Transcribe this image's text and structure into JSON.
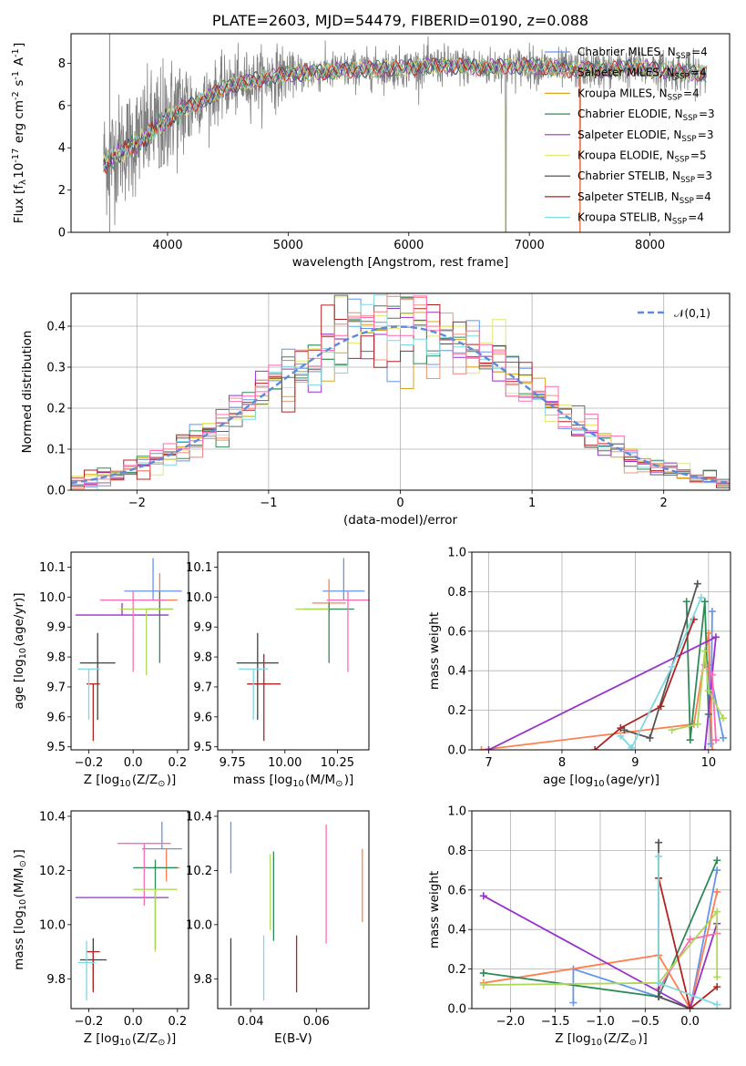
{
  "chart_data": [
    {
      "id": "spectrum",
      "type": "line",
      "title": "PLATE=2603, MJD=54479, FIBERID=0190, z=0.088",
      "xlabel": "wavelength [Angstrom, rest frame]",
      "ylabel": "Flux [f$_\\lambda$10$^{-17}$ erg cm$^{-2}$ s$^{-1}$ A$^{-1}$]",
      "xlim": [
        3200,
        8660
      ],
      "ylim": [
        0,
        9.4
      ],
      "x_ticks": [
        4000,
        5000,
        6000,
        7000,
        8000
      ],
      "y_ticks": [
        0,
        2,
        4,
        6,
        8
      ],
      "grid": false,
      "legend_position": "top-right",
      "data_x_range": [
        3470,
        8470
      ],
      "observed_color": "#808080",
      "continuum_x": [
        3470,
        3600,
        3800,
        4000,
        4200,
        4500,
        4800,
        5000,
        5300,
        5600,
        6000,
        6300,
        6600,
        7000,
        7300,
        7600,
        7900,
        8200,
        8470
      ],
      "continuum_y": [
        3.4,
        3.9,
        4.6,
        5.6,
        6.0,
        6.9,
        7.3,
        7.5,
        7.6,
        7.7,
        7.8,
        7.9,
        7.8,
        7.9,
        7.7,
        7.7,
        7.8,
        7.6,
        7.5
      ],
      "series": [
        {
          "name": "Chabrier MILES, N$_{SSP}$=4",
          "color": "#6495ED"
        },
        {
          "name": "Salpeter MILES, N$_{SSP}$=4",
          "color": "#FF7F50"
        },
        {
          "name": "Kroupa MILES, N$_{SSP}$=4",
          "color": "#DAA520"
        },
        {
          "name": "Chabrier ELODIE, N$_{SSP}$=3",
          "color": "#2E8B57"
        },
        {
          "name": "Salpeter ELODIE, N$_{SSP}$=3",
          "color": "#9932CC"
        },
        {
          "name": "Kroupa ELODIE, N$_{SSP}$=5",
          "color": "#E1E873"
        },
        {
          "name": "Chabrier STELIB, N$_{SSP}$=3",
          "color": "#404040"
        },
        {
          "name": "Salpeter STELIB, N$_{SSP}$=4",
          "color": "#B22222"
        },
        {
          "name": "Kroupa STELIB, N$_{SSP}$=4",
          "color": "#7FD8E0"
        }
      ]
    },
    {
      "id": "residuals",
      "type": "histogram",
      "xlabel": "(data-model)/error",
      "ylabel": "Normed distribution",
      "xlim": [
        -2.5,
        2.5
      ],
      "ylim": [
        0,
        0.48
      ],
      "x_ticks": [
        -2,
        -1,
        0,
        1,
        2
      ],
      "y_ticks": [
        0.0,
        0.1,
        0.2,
        0.3,
        0.4
      ],
      "grid": true,
      "bin_width": 0.1,
      "reference_curve": {
        "name": "$\\mathcal{N}(0,1)$",
        "mean": 0,
        "sigma": 1,
        "color": "#5B8BD9"
      },
      "legend_position": "top-right",
      "histogram_colors": [
        "#6495ED",
        "#E9967A",
        "#DAA520",
        "#2E8B57",
        "#9932CC",
        "#E1E873",
        "#696969",
        "#B22222",
        "#7FD8E0",
        "#F08080",
        "#FF69B4"
      ]
    },
    {
      "id": "age_vs_Z",
      "type": "errorbar",
      "xlabel": "Z [log$_{10}$(Z/Z$_\\odot$)]",
      "ylabel": "age  [log$_{10}$(age/yr)]",
      "xlim": [
        -0.28,
        0.25
      ],
      "ylim": [
        9.49,
        10.15
      ],
      "x_ticks": [
        -0.2,
        0.0,
        0.2
      ],
      "y_ticks": [
        9.5,
        9.6,
        9.7,
        9.8,
        9.9,
        10.0,
        10.1
      ],
      "grid": false,
      "points": [
        {
          "color": "#6495ED",
          "x": 0.09,
          "y": 10.02,
          "xerr": 0.13,
          "yerr_lo": 0.03,
          "yerr_hi": 0.11
        },
        {
          "color": "#FF7F50",
          "x": 0.12,
          "y": 9.99,
          "xerr": 0.08,
          "yerr_lo": 0.05,
          "yerr_hi": 0.09
        },
        {
          "color": "#2E8B57",
          "x": 0.12,
          "y": 9.96,
          "xerr": 0.06,
          "yerr_lo": 0.18,
          "yerr_hi": 0.06
        },
        {
          "color": "#9932CC",
          "x": -0.05,
          "y": 9.94,
          "xerr": 0.21,
          "yerr_lo": 0.0,
          "yerr_hi": 0.04
        },
        {
          "color": "#FF69B4",
          "x": 0.0,
          "y": 9.99,
          "xerr": 0.15,
          "yerr_lo": 0.24,
          "yerr_hi": 0.03
        },
        {
          "color": "#ADD857",
          "x": 0.06,
          "y": 9.96,
          "xerr": 0.12,
          "yerr_lo": 0.22,
          "yerr_hi": 0.0
        },
        {
          "color": "#404040",
          "x": -0.16,
          "y": 9.78,
          "xerr": 0.08,
          "yerr_lo": 0.19,
          "yerr_hi": 0.1
        },
        {
          "color": "#B22222",
          "x": -0.18,
          "y": 9.71,
          "xerr": 0.03,
          "yerr_lo": 0.19,
          "yerr_hi": 0.0
        },
        {
          "color": "#7FD8E0",
          "x": -0.2,
          "y": 9.76,
          "xerr": 0.05,
          "yerr_lo": 0.17,
          "yerr_hi": 0.0
        }
      ]
    },
    {
      "id": "age_vs_mass",
      "type": "errorbar",
      "xlabel": "mass [log$_{10}$(M/M$_\\odot$)]",
      "ylabel": "",
      "xlim": [
        9.68,
        10.4
      ],
      "ylim": [
        9.49,
        10.15
      ],
      "x_ticks": [
        9.75,
        10.0,
        10.25
      ],
      "y_ticks": [
        9.5,
        9.6,
        9.7,
        9.8,
        9.9,
        10.0,
        10.1
      ],
      "grid": false,
      "points": [
        {
          "color": "#6495ED",
          "x": 10.28,
          "y": 10.02,
          "xerr": 0.1,
          "yerr_lo": 0.03,
          "yerr_hi": 0.11
        },
        {
          "color": "#FF7F50",
          "x": 10.21,
          "y": 9.98,
          "xerr": 0.08,
          "yerr_lo": 0.03,
          "yerr_hi": 0.08
        },
        {
          "color": "#2E8B57",
          "x": 10.21,
          "y": 9.96,
          "xerr": 0.12,
          "yerr_lo": 0.18,
          "yerr_hi": 0.02
        },
        {
          "color": "#FF69B4",
          "x": 10.3,
          "y": 9.99,
          "xerr": 0.1,
          "yerr_lo": 0.24,
          "yerr_hi": 0.03
        },
        {
          "color": "#ADD857",
          "x": 10.13,
          "y": 9.96,
          "xerr": 0.08,
          "yerr_lo": 0.0,
          "yerr_hi": 0.0
        },
        {
          "color": "#404040",
          "x": 9.87,
          "y": 9.78,
          "xerr": 0.1,
          "yerr_lo": 0.19,
          "yerr_hi": 0.1
        },
        {
          "color": "#B22222",
          "x": 9.9,
          "y": 9.71,
          "xerr": 0.08,
          "yerr_lo": 0.19,
          "yerr_hi": 0.1
        },
        {
          "color": "#7FD8E0",
          "x": 9.85,
          "y": 9.76,
          "xerr": 0.07,
          "yerr_lo": 0.17,
          "yerr_hi": 0.0
        }
      ]
    },
    {
      "id": "mass_weight_vs_age",
      "type": "line",
      "xlabel": "age  [log$_{10}$(age/yr)]",
      "ylabel": "mass weight",
      "xlim": [
        6.77,
        10.3
      ],
      "ylim": [
        0,
        1.0
      ],
      "x_ticks": [
        7,
        8,
        9,
        10
      ],
      "y_ticks": [
        0.0,
        0.2,
        0.4,
        0.6,
        0.8,
        1.0
      ],
      "grid": true,
      "series": [
        {
          "color": "#6495ED",
          "x": [
            10.05,
            10.03,
            10.0,
            10.2
          ],
          "y": [
            0.7,
            0.03,
            0.43,
            0.06
          ]
        },
        {
          "color": "#FF7F50",
          "x": [
            6.9,
            9.8,
            10.0,
            10.05
          ],
          "y": [
            0.0,
            0.13,
            0.59,
            0.0
          ]
        },
        {
          "color": "#2E8B57",
          "x": [
            9.7,
            9.75,
            9.95,
            10.0
          ],
          "y": [
            0.75,
            0.05,
            0.75,
            0.18
          ]
        },
        {
          "color": "#9932CC",
          "x": [
            7.0,
            10.1,
            9.95
          ],
          "y": [
            0.0,
            0.57,
            0.0
          ]
        },
        {
          "color": "#FF69B4",
          "x": [
            9.95,
            10.05,
            10.1
          ],
          "y": [
            0.43,
            0.38,
            0.05
          ]
        },
        {
          "color": "#ADD857",
          "x": [
            9.5,
            9.85,
            9.95,
            10.0,
            10.2
          ],
          "y": [
            0.1,
            0.13,
            0.5,
            0.3,
            0.16
          ]
        },
        {
          "color": "#555555",
          "x": [
            8.85,
            9.2,
            9.85
          ],
          "y": [
            0.1,
            0.06,
            0.84
          ]
        },
        {
          "color": "#B22222",
          "x": [
            8.45,
            8.8,
            9.35,
            9.8
          ],
          "y": [
            0.0,
            0.11,
            0.22,
            0.66
          ]
        },
        {
          "color": "#7FD8E0",
          "x": [
            8.8,
            8.95,
            9.5,
            9.9
          ],
          "y": [
            0.07,
            0.01,
            0.42,
            0.77
          ]
        }
      ]
    },
    {
      "id": "mass_vs_Z",
      "type": "errorbar",
      "xlabel": "Z [log$_{10}$(Z/Z$_\\odot$)]",
      "ylabel": "mass [log$_{10}$(M/M$_\\odot$)]",
      "xlim": [
        -0.28,
        0.25
      ],
      "ylim": [
        9.69,
        10.42
      ],
      "x_ticks": [
        -0.2,
        0.0,
        0.2
      ],
      "y_ticks": [
        9.8,
        10.0,
        10.2,
        10.4
      ],
      "grid": false,
      "points": [
        {
          "color": "#6495ED",
          "x": 0.13,
          "y": 10.28,
          "xerr": 0.09,
          "yerr_lo": 0.0,
          "yerr_hi": 0.1
        },
        {
          "color": "#FF7F50",
          "x": 0.15,
          "y": 10.21,
          "xerr": 0.06,
          "yerr_lo": 0.05,
          "yerr_hi": 0.07
        },
        {
          "color": "#2E8B57",
          "x": 0.1,
          "y": 10.21,
          "xerr": 0.1,
          "yerr_lo": 0.3,
          "yerr_hi": 0.03
        },
        {
          "color": "#9932CC",
          "x": -0.05,
          "y": 10.1,
          "xerr": 0.21,
          "yerr_lo": 0.0,
          "yerr_hi": 0.0
        },
        {
          "color": "#FF69B4",
          "x": 0.05,
          "y": 10.3,
          "xerr": 0.12,
          "yerr_lo": 0.23,
          "yerr_hi": 0.0
        },
        {
          "color": "#ADD857",
          "x": 0.1,
          "y": 10.13,
          "xerr": 0.1,
          "yerr_lo": 0.23,
          "yerr_hi": 0.0
        },
        {
          "color": "#404040",
          "x": -0.18,
          "y": 9.87,
          "xerr": 0.06,
          "yerr_lo": 0.11,
          "yerr_hi": 0.08
        },
        {
          "color": "#B22222",
          "x": -0.18,
          "y": 9.9,
          "xerr": 0.03,
          "yerr_lo": 0.15,
          "yerr_hi": 0.0
        },
        {
          "color": "#7FD8E0",
          "x": -0.21,
          "y": 9.86,
          "xerr": 0.04,
          "yerr_lo": 0.14,
          "yerr_hi": 0.08
        }
      ]
    },
    {
      "id": "mass_vs_ebv",
      "type": "errorbar",
      "xlabel": "E(B-V)",
      "ylabel": "",
      "xlim": [
        0.03,
        0.076
      ],
      "ylim": [
        9.69,
        10.42
      ],
      "x_ticks": [
        0.04,
        0.06
      ],
      "y_ticks": [
        9.8,
        10.0,
        10.2,
        10.4
      ],
      "grid": false,
      "points": [
        {
          "color": "#6495ED",
          "x": 0.034,
          "y": 10.28,
          "xerr": 0,
          "yerr_lo": 0.09,
          "yerr_hi": 0.1
        },
        {
          "color": "#FF7F50",
          "x": 0.074,
          "y": 10.21,
          "xerr": 0,
          "yerr_lo": 0.2,
          "yerr_hi": 0.07
        },
        {
          "color": "#2E8B57",
          "x": 0.047,
          "y": 10.21,
          "xerr": 0,
          "yerr_lo": 0.27,
          "yerr_hi": 0.06
        },
        {
          "color": "#FF69B4",
          "x": 0.063,
          "y": 10.3,
          "xerr": 0,
          "yerr_lo": 0.37,
          "yerr_hi": 0.07
        },
        {
          "color": "#ADD857",
          "x": 0.046,
          "y": 10.13,
          "xerr": 0,
          "yerr_lo": 0.15,
          "yerr_hi": 0.13
        },
        {
          "color": "#404040",
          "x": 0.034,
          "y": 9.87,
          "xerr": 0,
          "yerr_lo": 0.17,
          "yerr_hi": 0.08
        },
        {
          "color": "#B22222",
          "x": 0.054,
          "y": 9.87,
          "xerr": 0,
          "yerr_lo": 0.12,
          "yerr_hi": 0.09
        },
        {
          "color": "#7FD8E0",
          "x": 0.044,
          "y": 9.86,
          "xerr": 0,
          "yerr_lo": 0.14,
          "yerr_hi": 0.1
        }
      ]
    },
    {
      "id": "mass_weight_vs_Z",
      "type": "line",
      "xlabel": "Z [log$_{10}$(Z/Z$_\\odot$)]",
      "ylabel": "mass weight",
      "xlim": [
        -2.43,
        0.45
      ],
      "ylim": [
        0,
        1.0
      ],
      "x_ticks": [
        -2.0,
        -1.5,
        -1.0,
        -0.5,
        0.0
      ],
      "y_ticks": [
        0.0,
        0.2,
        0.4,
        0.6,
        0.8,
        1.0
      ],
      "grid": true,
      "series": [
        {
          "color": "#6495ED",
          "x": [
            -1.3,
            -1.3,
            -0.35,
            0.0,
            0.3
          ],
          "y": [
            0.03,
            0.2,
            0.06,
            0.0,
            0.7
          ]
        },
        {
          "color": "#FF7F50",
          "x": [
            -2.3,
            -0.35,
            0.0,
            0.3
          ],
          "y": [
            0.13,
            0.27,
            0.0,
            0.59
          ]
        },
        {
          "color": "#2E8B57",
          "x": [
            -2.3,
            -0.35,
            0.3
          ],
          "y": [
            0.18,
            0.06,
            0.75
          ]
        },
        {
          "color": "#9932CC",
          "x": [
            -2.3,
            0.0,
            0.3
          ],
          "y": [
            0.57,
            0.0,
            0.43
          ]
        },
        {
          "color": "#FF69B4",
          "x": [
            -0.35,
            0.0,
            0.3
          ],
          "y": [
            0.1,
            0.35,
            0.38
          ]
        },
        {
          "color": "#ADD857",
          "x": [
            -2.3,
            -0.35,
            0.3,
            0.3
          ],
          "y": [
            0.12,
            0.13,
            0.49,
            0.16
          ]
        },
        {
          "color": "#555555",
          "x": [
            -0.35,
            -0.35,
            0.0
          ],
          "y": [
            0.84,
            0.06,
            0.0
          ]
        },
        {
          "color": "#B22222",
          "x": [
            -0.35,
            0.0,
            0.3
          ],
          "y": [
            0.66,
            0.0,
            0.11
          ]
        },
        {
          "color": "#7FD8E0",
          "x": [
            -0.35,
            -0.35,
            0.3
          ],
          "y": [
            0.77,
            0.13,
            0.02
          ]
        }
      ]
    }
  ]
}
